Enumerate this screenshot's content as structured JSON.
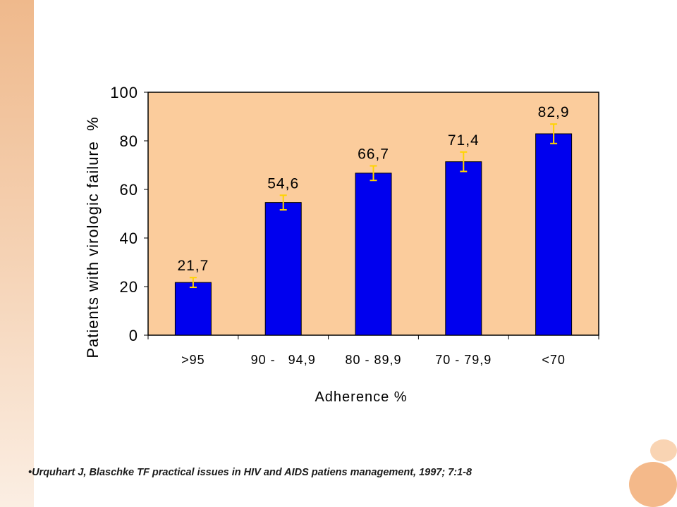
{
  "chart_data": {
    "type": "bar",
    "categories": [
      ">95",
      "90 -   94,9",
      "80 - 89,9",
      "70 - 79,9",
      "<70"
    ],
    "values": [
      21.7,
      54.6,
      66.7,
      71.4,
      82.9
    ],
    "value_labels": [
      "21,7",
      "54,6",
      "66,7",
      "71,4",
      "82,9"
    ],
    "error": [
      2,
      3,
      3,
      4,
      4
    ],
    "ylabel": "Patients with virologic failure  %",
    "xlabel": "Adherence %",
    "ylim": [
      0,
      100
    ],
    "yticks": [
      0,
      20,
      40,
      60,
      80,
      100
    ],
    "grid": false,
    "colors": {
      "bar": "#0000ee",
      "bar_edge": "#000000",
      "plot_background": "#fbcc9c",
      "error_bar": "#ffd400"
    }
  },
  "citation": "•Urquhart J, Blaschke TF practical issues in HIV and AIDS patiens management, 1997; 7:1-8"
}
